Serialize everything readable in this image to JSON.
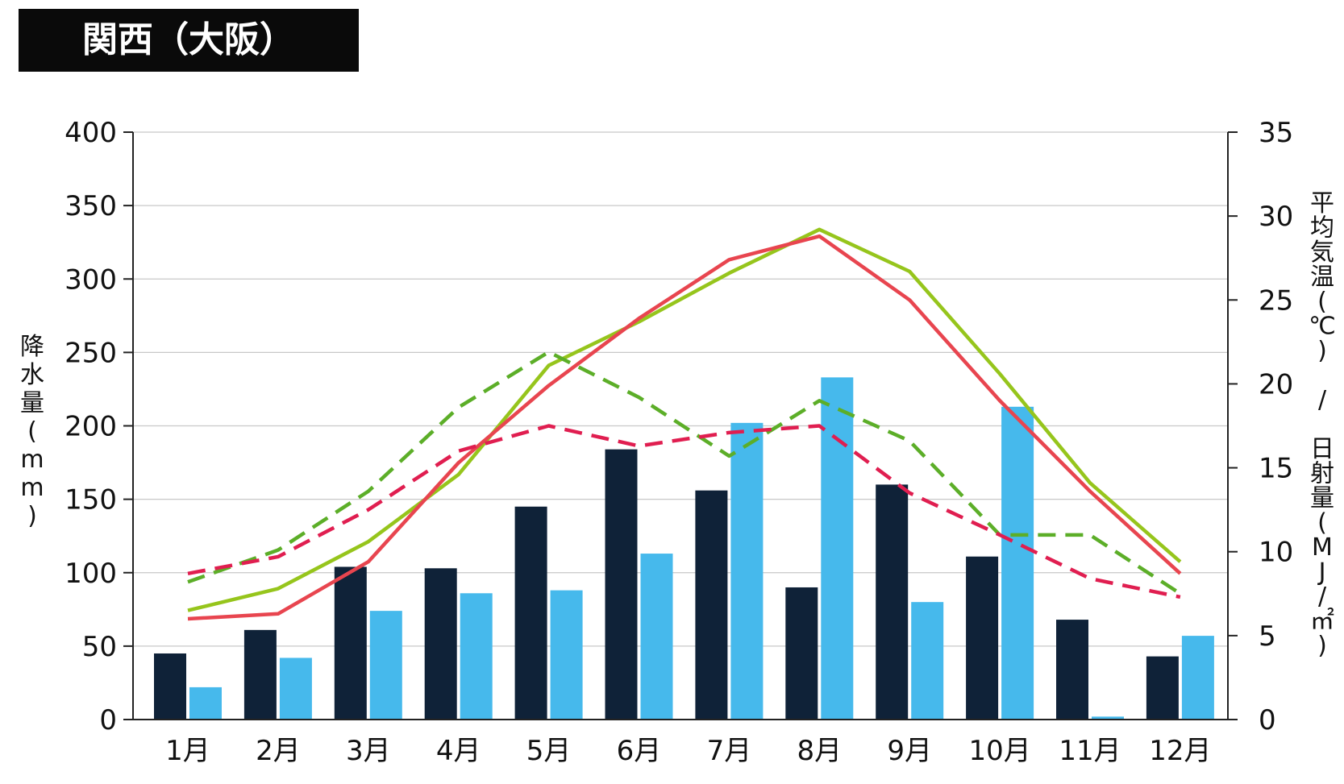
{
  "title": "関西（大阪）",
  "chart_data": {
    "type": "bar+line",
    "title": "関西（大阪）",
    "categories": [
      "1月",
      "2月",
      "3月",
      "4月",
      "5月",
      "6月",
      "7月",
      "8月",
      "9月",
      "10月",
      "11月",
      "12月"
    ],
    "ylabel_left": "降水量(mm)",
    "ylabel_right": "平均気温(℃) / 日射量(MJ/㎡)",
    "ylim_left": [
      0,
      400
    ],
    "ylim_right": [
      0,
      35
    ],
    "yticks_left": [
      "0",
      "50",
      "100",
      "150",
      "200",
      "250",
      "300",
      "350",
      "400"
    ],
    "yticks_right": [
      "0",
      "5",
      "10",
      "15",
      "20",
      "25",
      "30",
      "35"
    ],
    "grid": true,
    "bars": [
      {
        "axis": "left",
        "color": "#0f2238",
        "values": [
          45,
          61,
          104,
          103,
          145,
          184,
          156,
          90,
          160,
          111,
          68,
          43
        ]
      },
      {
        "axis": "left",
        "color": "#46b9ec",
        "values": [
          22,
          42,
          74,
          86,
          88,
          113,
          202,
          233,
          80,
          213,
          2,
          57
        ]
      }
    ],
    "lines": [
      {
        "axis": "right",
        "color": "#96c51c",
        "dashed": false,
        "values": [
          6.5,
          7.8,
          10.6,
          14.6,
          21.1,
          23.7,
          26.6,
          29.2,
          26.7,
          20.6,
          14.1,
          9.4
        ]
      },
      {
        "axis": "right",
        "color": "#e8454f",
        "dashed": false,
        "values": [
          6.0,
          6.3,
          9.4,
          15.3,
          19.9,
          23.9,
          27.4,
          28.8,
          25.0,
          19.0,
          13.6,
          8.7
        ]
      },
      {
        "axis": "right",
        "color": "#5cae28",
        "dashed": true,
        "values": [
          8.2,
          10.1,
          13.6,
          18.6,
          21.9,
          19.2,
          15.7,
          19.0,
          16.6,
          11.0,
          11.0,
          7.5
        ]
      },
      {
        "axis": "right",
        "color": "#e01e50",
        "dashed": true,
        "values": [
          8.7,
          9.7,
          12.5,
          16.0,
          17.5,
          16.3,
          17.1,
          17.5,
          13.5,
          11.0,
          8.4,
          7.3
        ]
      }
    ]
  }
}
